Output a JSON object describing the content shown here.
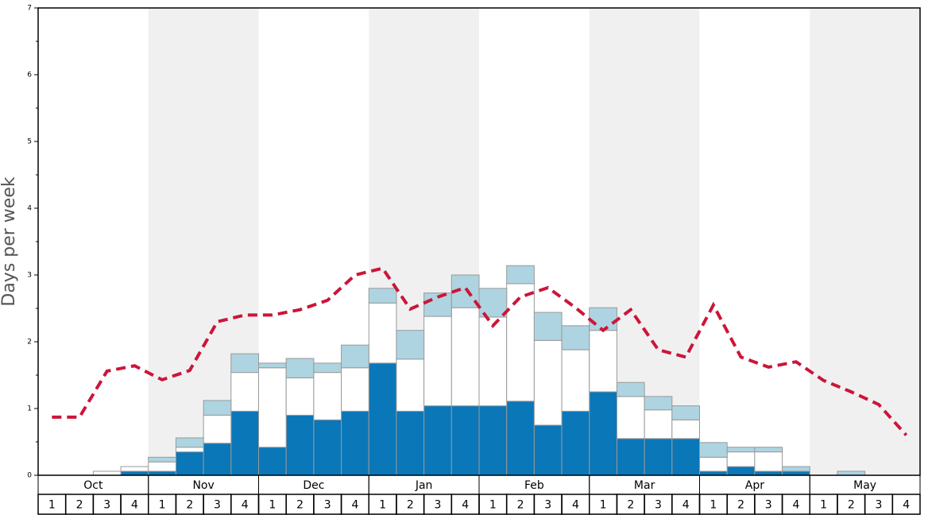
{
  "chart_data": {
    "type": "bar",
    "stacked": true,
    "ylabel": "Days per week",
    "months": [
      "Oct",
      "Nov",
      "Dec",
      "Jan",
      "Feb",
      "Mar",
      "Apr",
      "May"
    ],
    "categories": [
      "1",
      "2",
      "3",
      "4",
      "1",
      "2",
      "3",
      "4",
      "1",
      "2",
      "3",
      "4",
      "1",
      "2",
      "3",
      "4",
      "1",
      "2",
      "3",
      "4",
      "1",
      "2",
      "3",
      "4",
      "1",
      "2",
      "3",
      "4",
      "1",
      "2",
      "3",
      "4"
    ],
    "series": [
      {
        "color": "#0a77b8",
        "values": [
          0,
          0,
          0,
          0.06,
          0.06,
          0.35,
          0.48,
          0.96,
          0.42,
          0.9,
          0.83,
          0.96,
          1.68,
          0.96,
          1.04,
          1.04,
          1.04,
          1.11,
          0.75,
          0.96,
          1.25,
          0.55,
          0.55,
          0.55,
          0.06,
          0.13,
          0.06,
          0.06,
          0,
          0,
          0,
          0
        ]
      },
      {
        "color": "#ffffff",
        "values": [
          0,
          0,
          0.06,
          0.07,
          0.14,
          0.07,
          0.42,
          0.58,
          1.19,
          0.56,
          0.71,
          0.65,
          0.9,
          0.78,
          1.34,
          1.47,
          1.33,
          1.76,
          1.27,
          0.92,
          0.92,
          0.63,
          0.43,
          0.28,
          0.21,
          0.22,
          0.29,
          0,
          0,
          0,
          0,
          0
        ]
      },
      {
        "color": "#aed4e1",
        "values": [
          0,
          0,
          0,
          0,
          0.07,
          0.14,
          0.22,
          0.28,
          0.07,
          0.29,
          0.14,
          0.34,
          0.22,
          0.43,
          0.35,
          0.49,
          0.43,
          0.27,
          0.42,
          0.36,
          0.34,
          0.21,
          0.2,
          0.21,
          0.22,
          0.07,
          0.07,
          0.07,
          0,
          0.06,
          0,
          0
        ]
      }
    ],
    "line": {
      "color": "#cc1538",
      "values": [
        0.87,
        0.87,
        1.56,
        1.64,
        1.43,
        1.57,
        2.3,
        2.4,
        2.4,
        2.48,
        2.62,
        3.0,
        3.1,
        2.49,
        2.67,
        2.81,
        2.24,
        2.67,
        2.81,
        2.51,
        2.17,
        2.48,
        1.88,
        1.77,
        2.55,
        1.77,
        1.62,
        1.7,
        1.42,
        1.25,
        1.06,
        0.6
      ]
    },
    "ylim": [
      0,
      7
    ],
    "yticks": [
      0,
      1,
      2,
      3,
      4,
      5,
      6,
      7
    ],
    "yticks_minor": [
      0.5,
      1.5,
      2.5,
      3.5,
      4.5,
      5.5,
      6.5
    ]
  }
}
